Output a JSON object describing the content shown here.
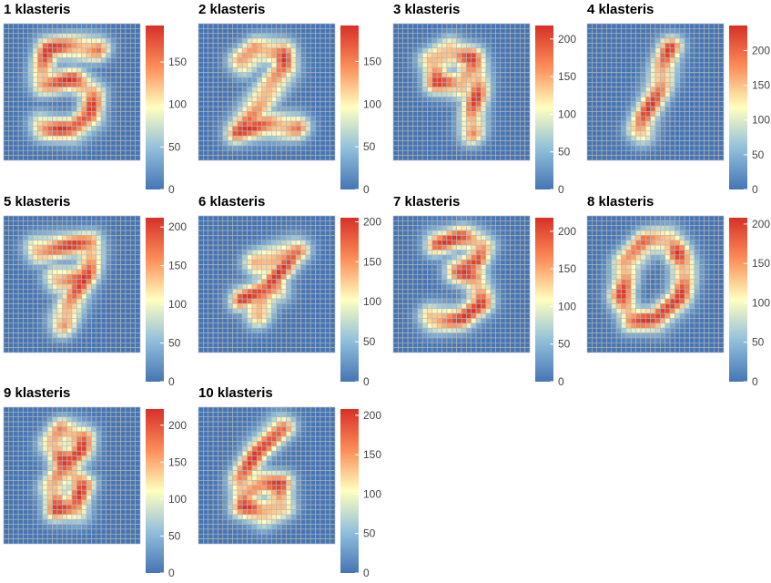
{
  "chart_data": [
    {
      "type": "heatmap",
      "title": "1 klasteris",
      "digit": "5",
      "colorbar": {
        "min": 0,
        "max": 193,
        "ticks": [
          0,
          50,
          100,
          150
        ]
      }
    },
    {
      "type": "heatmap",
      "title": "2 klasteris",
      "digit": "2",
      "colorbar": {
        "min": 0,
        "max": 192,
        "ticks": [
          0,
          50,
          100,
          150
        ]
      }
    },
    {
      "type": "heatmap",
      "title": "3 klasteris",
      "digit": "9",
      "colorbar": {
        "min": 0,
        "max": 218,
        "ticks": [
          0,
          50,
          100,
          150,
          200
        ]
      }
    },
    {
      "type": "heatmap",
      "title": "4 klasteris",
      "digit": "1",
      "colorbar": {
        "min": 0,
        "max": 236,
        "ticks": [
          0,
          50,
          100,
          150,
          200
        ]
      }
    },
    {
      "type": "heatmap",
      "title": "5 klasteris",
      "digit": "7",
      "colorbar": {
        "min": 0,
        "max": 212,
        "ticks": [
          0,
          50,
          100,
          150,
          200
        ]
      }
    },
    {
      "type": "heatmap",
      "title": "6 klasteris",
      "digit": "7",
      "colorbar": {
        "min": 0,
        "max": 205,
        "ticks": [
          0,
          50,
          100,
          150,
          200
        ]
      }
    },
    {
      "type": "heatmap",
      "title": "7 klasteris",
      "digit": "3",
      "colorbar": {
        "min": 0,
        "max": 218,
        "ticks": [
          0,
          50,
          100,
          150,
          200
        ]
      }
    },
    {
      "type": "heatmap",
      "title": "8 klasteris",
      "digit": "0",
      "colorbar": {
        "min": 0,
        "max": 208,
        "ticks": [
          0,
          50,
          100,
          150,
          200
        ]
      }
    },
    {
      "type": "heatmap",
      "title": "9 klasteris",
      "digit": "8",
      "colorbar": {
        "min": 0,
        "max": 222,
        "ticks": [
          0,
          50,
          100,
          150,
          200
        ]
      }
    },
    {
      "type": "heatmap",
      "title": "10 klasteris",
      "digit": "6",
      "colorbar": {
        "min": 0,
        "max": 208,
        "ticks": [
          0,
          50,
          100,
          150,
          200
        ]
      }
    }
  ],
  "colors": {
    "low": "#4575b4",
    "mid": "#ffffbf",
    "high": "#d73027",
    "grid": "#b8b8b8"
  }
}
